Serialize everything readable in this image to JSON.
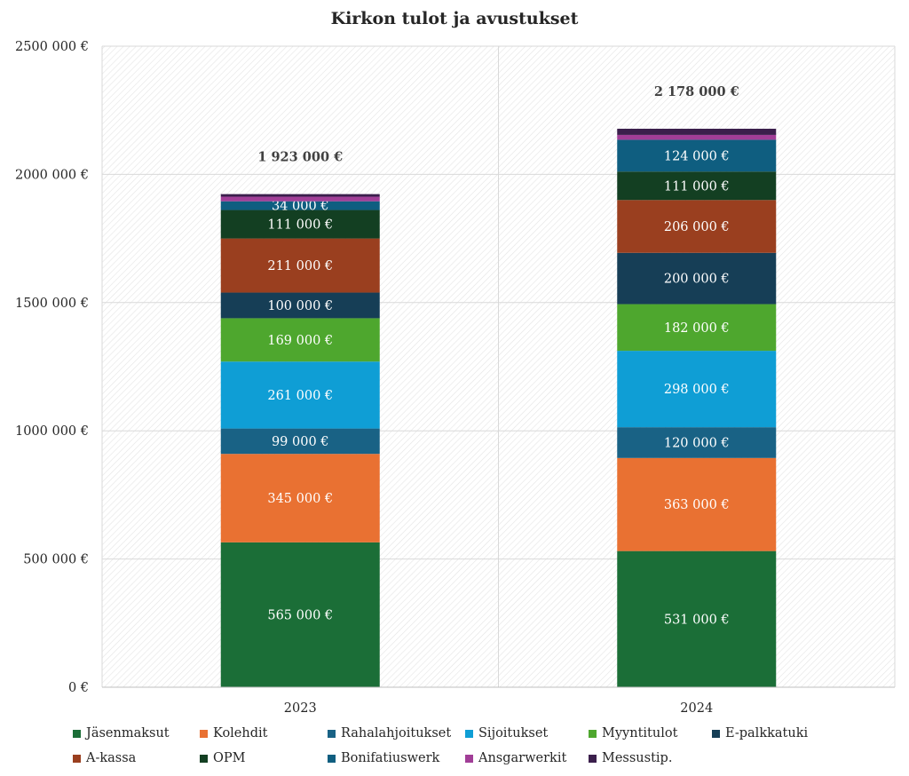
{
  "chart_data": {
    "type": "bar",
    "stacked": true,
    "title": "Kirkon tulot ja avustukset",
    "categories": [
      "2023",
      "2024"
    ],
    "ylim": [
      0,
      2500000
    ],
    "yticks": [
      0,
      500000,
      1000000,
      1500000,
      2000000,
      2500000
    ],
    "ytick_labels": [
      "0 €",
      "500 000 €",
      "1000 000 €",
      "1500 000 €",
      "2000 000 €",
      "2500 000 €"
    ],
    "grid": true,
    "legend_position": "bottom",
    "series": [
      {
        "name": "Jäsenmaksut",
        "color": "#1b6e37",
        "values": [
          565000,
          531000
        ],
        "labels": [
          "565 000 €",
          "531 000 €"
        ]
      },
      {
        "name": "Kolehdit",
        "color": "#e97132",
        "values": [
          345000,
          363000
        ],
        "labels": [
          "345 000 €",
          "363 000 €"
        ]
      },
      {
        "name": "Rahalahjoitukset",
        "color": "#196285",
        "values": [
          99000,
          120000
        ],
        "labels": [
          "99 000 €",
          "120 000 €"
        ]
      },
      {
        "name": "Sijoitukset",
        "color": "#0f9ed5",
        "values": [
          261000,
          298000
        ],
        "labels": [
          "261 000 €",
          "298 000 €"
        ]
      },
      {
        "name": "Myyntitulot",
        "color": "#4ea72e",
        "values": [
          169000,
          182000
        ],
        "labels": [
          "169 000 €",
          "182 000 €"
        ]
      },
      {
        "name": "E-palkkatuki",
        "color": "#163e56",
        "values": [
          100000,
          200000
        ],
        "labels": [
          "100 000 €",
          "200 000 €"
        ]
      },
      {
        "name": "A-kassa",
        "color": "#9a3f1f",
        "values": [
          211000,
          206000
        ],
        "labels": [
          "211 000 €",
          "206 000 €"
        ]
      },
      {
        "name": "OPM",
        "color": "#133f22",
        "values": [
          111000,
          111000
        ],
        "labels": [
          "111 000 €",
          "111 000 €"
        ]
      },
      {
        "name": "Bonifatiuswerk",
        "color": "#0f5e80",
        "values": [
          34000,
          124000
        ],
        "labels": [
          "34 000 €",
          "124 000 €"
        ]
      },
      {
        "name": "Ansgarwerkit",
        "color": "#a13e97",
        "values": [
          18000,
          19000
        ],
        "labels": [
          "",
          ""
        ]
      },
      {
        "name": "Messustip.",
        "color": "#3b1f4c",
        "values": [
          10000,
          24000
        ],
        "labels": [
          "",
          ""
        ]
      }
    ],
    "totals": [
      "1 923 000 €",
      "2 178 000 €"
    ]
  }
}
